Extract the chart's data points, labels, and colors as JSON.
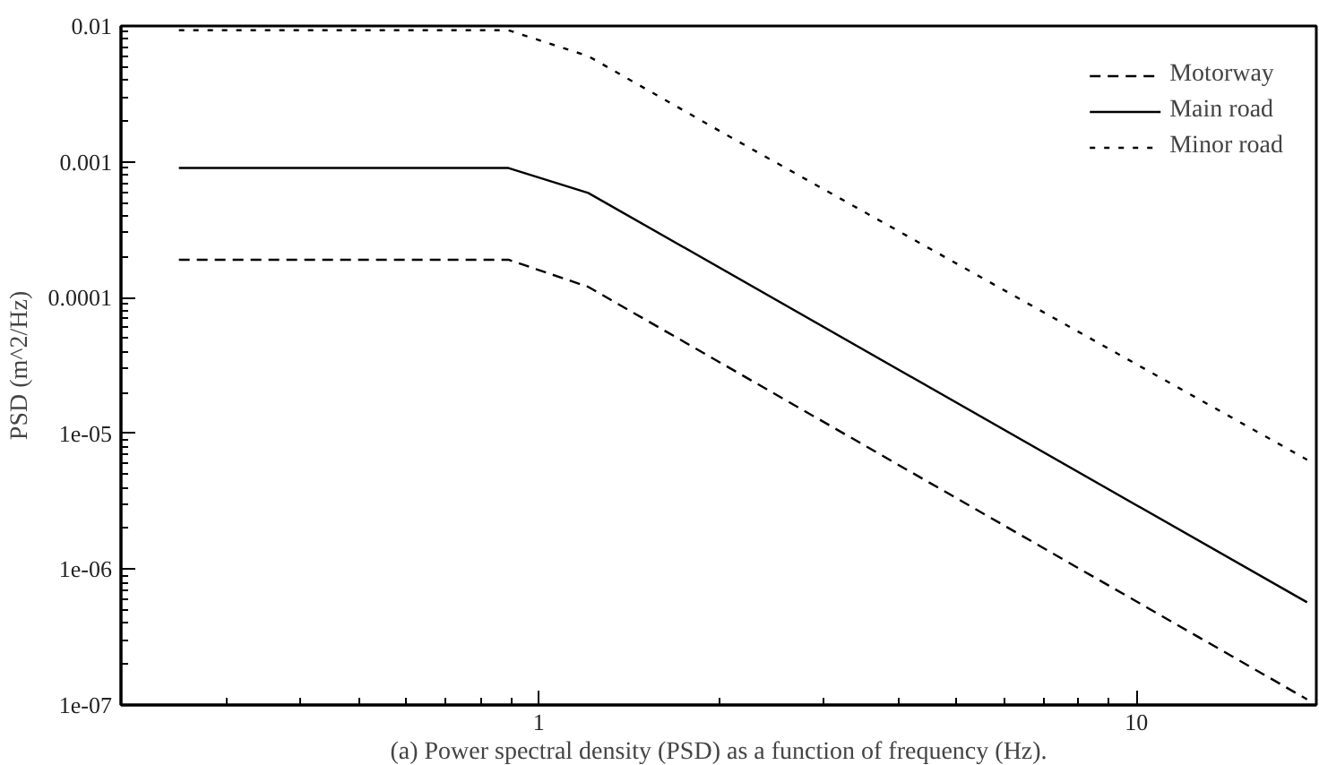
{
  "chart_data": {
    "type": "line",
    "ylabel": "PSD (m^2/Hz)",
    "annotations": [
      "(a) Power spectral density (PSD) as a function of frequency (Hz)."
    ],
    "log": "xy",
    "xlim": [
      0.2,
      20
    ],
    "ylim": [
      1e-07,
      0.01
    ],
    "xticks": [
      1,
      10
    ],
    "yticks": [
      {
        "value": 0.01,
        "label": "0.01"
      },
      {
        "value": 0.001,
        "label": "0.001"
      },
      {
        "value": 0.0001,
        "label": "0.0001"
      },
      {
        "value": 1e-05,
        "label": "1e-05"
      },
      {
        "value": 1e-06,
        "label": "1e-06"
      },
      {
        "value": 1e-07,
        "label": "1e-07"
      }
    ],
    "grid": false,
    "legend": "top right",
    "series": [
      {
        "name": "Motorway",
        "color": "#000000",
        "line_style": "dashed",
        "x": [
          0.25,
          0.89,
          1.21,
          19.3
        ],
        "values": [
          0.00019,
          0.00019,
          0.00012,
          1.1e-07
        ]
      },
      {
        "name": "Main road",
        "color": "#000000",
        "line_style": "solid",
        "x": [
          0.25,
          0.89,
          1.21,
          19.3
        ],
        "values": [
          0.0009,
          0.0009,
          0.00059,
          5.7e-07
        ]
      },
      {
        "name": "Minor road",
        "color": "#000000",
        "line_style": "dotted",
        "x": [
          0.25,
          0.89,
          1.21,
          2.05,
          19.3
        ],
        "values": [
          0.0093,
          0.0093,
          0.006,
          0.0016,
          6.4e-06
        ]
      }
    ]
  }
}
